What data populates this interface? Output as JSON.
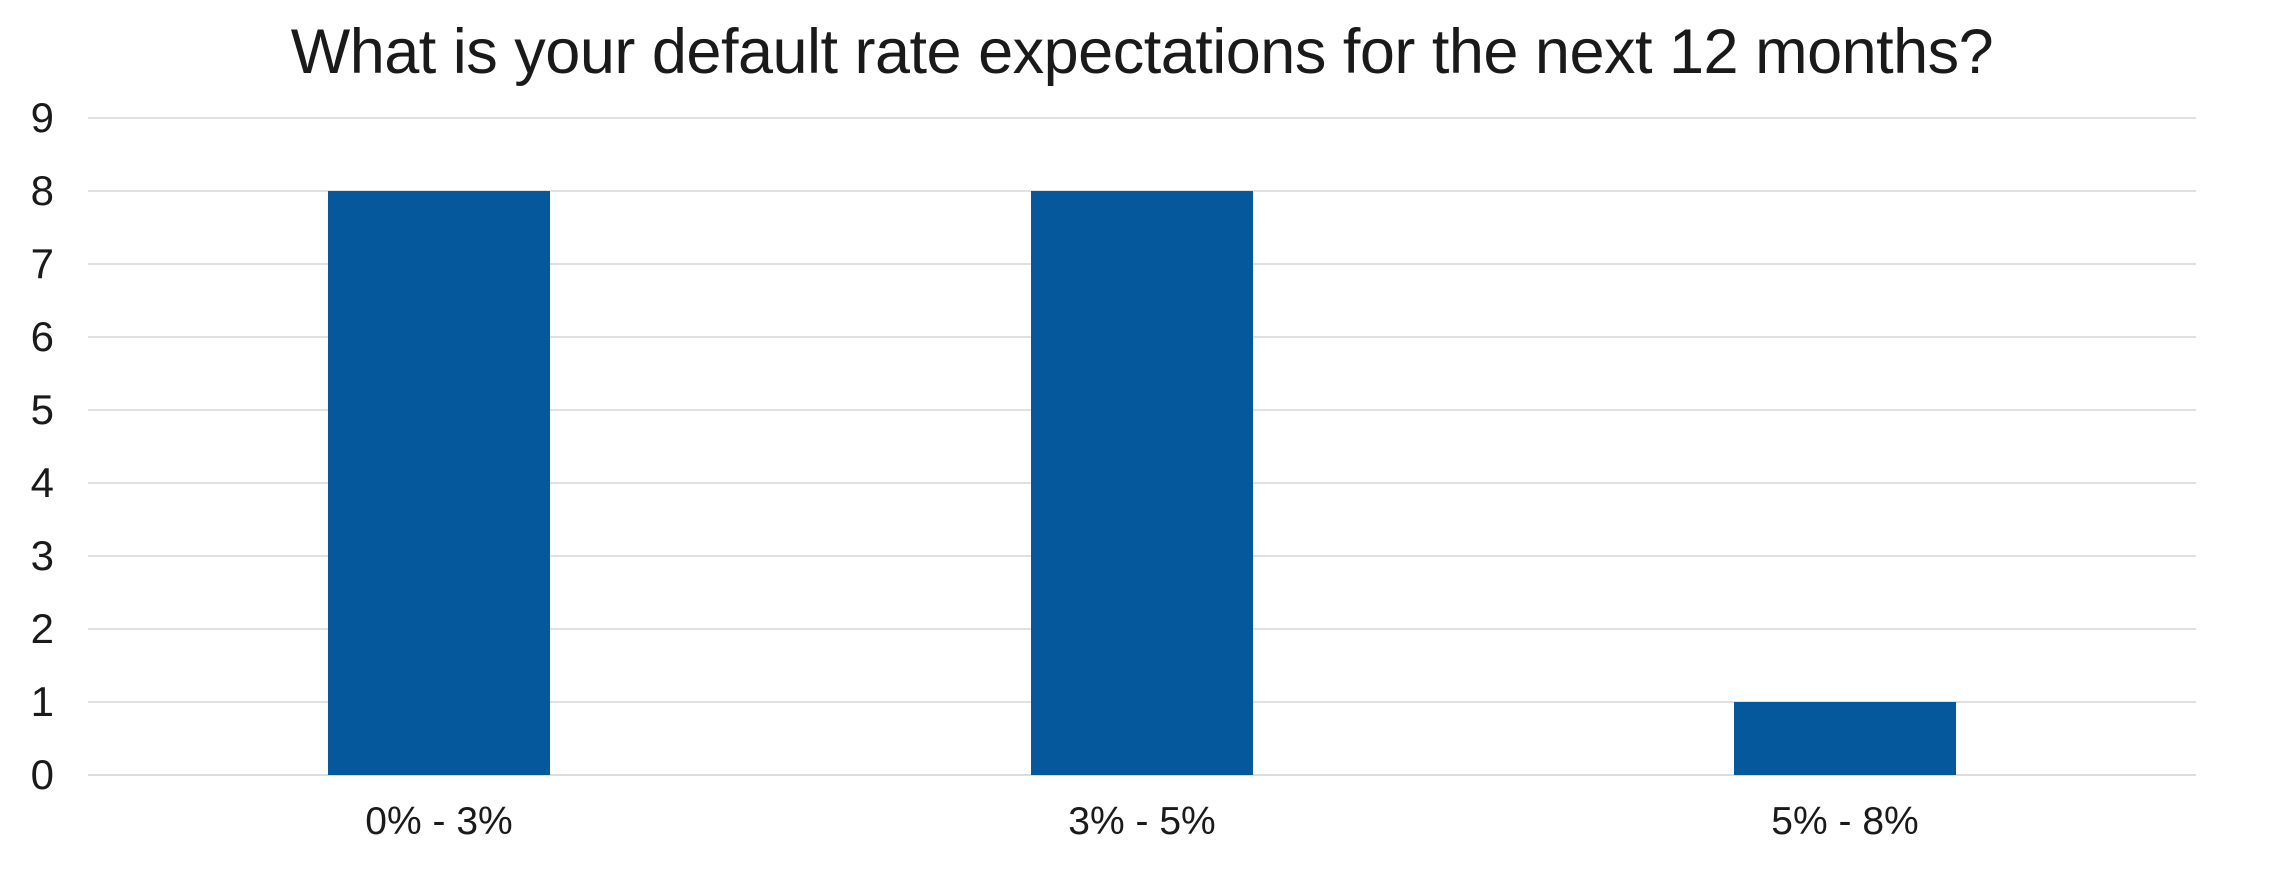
{
  "chart_data": {
    "type": "bar",
    "title": "What is your default rate expectations for the next 12 months?",
    "categories": [
      "0% - 3%",
      "3% - 5%",
      "5% - 8%"
    ],
    "values": [
      8,
      8,
      1
    ],
    "xlabel": "",
    "ylabel": "",
    "ylim": [
      0,
      9
    ],
    "yticks": [
      0,
      1,
      2,
      3,
      4,
      5,
      6,
      7,
      8,
      9
    ],
    "grid": "horizontal",
    "legend": "none",
    "colors": {
      "bar": "#05589B",
      "gridline": "#E0E0E0",
      "baseline": "#DCDCDC",
      "text": "#1A1A1A",
      "background": "#FFFFFF"
    }
  }
}
